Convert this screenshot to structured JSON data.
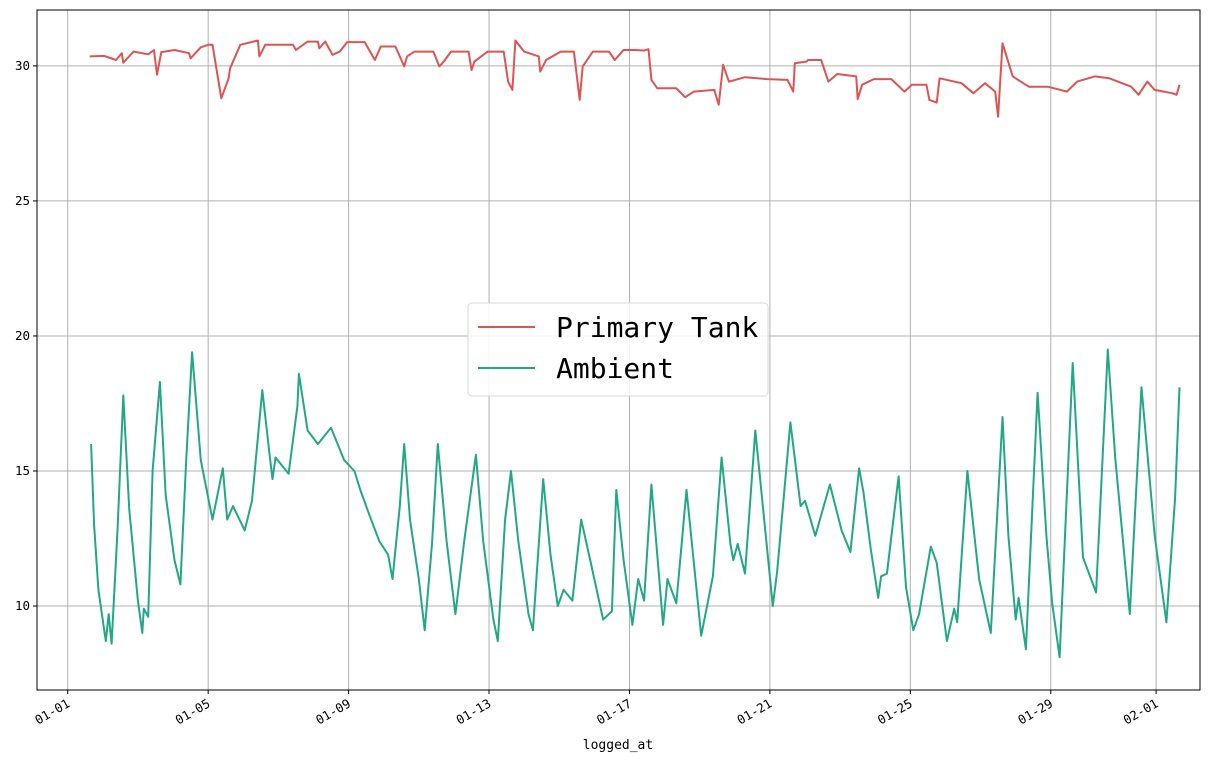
{
  "chart_data": {
    "type": "line",
    "title": "",
    "xlabel": "logged_at",
    "ylabel": "",
    "xlim": [
      "12-31 03:00",
      "02-02 06:00"
    ],
    "ylim": [
      6.89,
      32.07
    ],
    "grid": true,
    "legend_position": "center",
    "x_ticks": [
      "01-01",
      "01-05",
      "01-09",
      "01-13",
      "01-17",
      "01-21",
      "01-25",
      "01-29",
      "02-01"
    ],
    "y_ticks": [
      10,
      15,
      20,
      25,
      30
    ],
    "series": [
      {
        "name": "Primary Tank",
        "color": "#dd5452",
        "points": [
          [
            "01-01 15:00",
            30.35
          ],
          [
            "01-02 01:00",
            30.37
          ],
          [
            "01-02 09:00",
            30.22
          ],
          [
            "01-02 13:00",
            30.47
          ],
          [
            "01-02 14:00",
            30.12
          ],
          [
            "01-02 21:00",
            30.53
          ],
          [
            "01-03 07:00",
            30.43
          ],
          [
            "01-03 11:00",
            30.59
          ],
          [
            "01-03 13:00",
            29.67
          ],
          [
            "01-03 16:00",
            30.51
          ],
          [
            "01-04 01:00",
            30.59
          ],
          [
            "01-04 11:00",
            30.47
          ],
          [
            "01-04 12:00",
            30.28
          ],
          [
            "01-04 19:00",
            30.69
          ],
          [
            "01-05 00:00",
            30.78
          ],
          [
            "01-05 03:00",
            30.78
          ],
          [
            "01-05 09:00",
            28.8
          ],
          [
            "01-05 14:00",
            29.54
          ],
          [
            "01-05 15:00",
            29.91
          ],
          [
            "01-05 22:00",
            30.78
          ],
          [
            "01-06 10:00",
            30.94
          ],
          [
            "01-06 11:00",
            30.35
          ],
          [
            "01-06 15:00",
            30.78
          ],
          [
            "01-07 10:00",
            30.78
          ],
          [
            "01-07 12:00",
            30.59
          ],
          [
            "01-07 20:00",
            30.9
          ],
          [
            "01-08 03:00",
            30.9
          ],
          [
            "01-08 04:00",
            30.65
          ],
          [
            "01-08 08:00",
            30.9
          ],
          [
            "01-08 13:00",
            30.41
          ],
          [
            "01-08 18:00",
            30.53
          ],
          [
            "01-08 23:00",
            30.88
          ],
          [
            "01-09 11:00",
            30.88
          ],
          [
            "01-09 18:00",
            30.22
          ],
          [
            "01-09 22:00",
            30.72
          ],
          [
            "01-10 08:00",
            30.72
          ],
          [
            "01-10 14:00",
            29.98
          ],
          [
            "01-10 16:00",
            30.35
          ],
          [
            "01-10 21:00",
            30.53
          ],
          [
            "01-11 10:00",
            30.53
          ],
          [
            "01-11 14:00",
            29.98
          ],
          [
            "01-11 17:00",
            30.16
          ],
          [
            "01-11 22:00",
            30.53
          ],
          [
            "01-12 10:00",
            30.53
          ],
          [
            "01-12 12:00",
            29.85
          ],
          [
            "01-12 14:00",
            30.16
          ],
          [
            "01-12 23:00",
            30.53
          ],
          [
            "01-13 10:00",
            30.53
          ],
          [
            "01-13 13:00",
            29.42
          ],
          [
            "01-13 16:00",
            29.11
          ],
          [
            "01-13 18:00",
            30.94
          ],
          [
            "01-14 00:00",
            30.53
          ],
          [
            "01-14 10:00",
            30.35
          ],
          [
            "01-14 11:00",
            29.79
          ],
          [
            "01-14 15:00",
            30.22
          ],
          [
            "01-15 01:00",
            30.53
          ],
          [
            "01-15 10:00",
            30.53
          ],
          [
            "01-15 14:00",
            28.74
          ],
          [
            "01-15 16:00",
            29.98
          ],
          [
            "01-15 23:00",
            30.53
          ],
          [
            "01-16 10:00",
            30.53
          ],
          [
            "01-16 14:00",
            30.22
          ],
          [
            "01-16 20:00",
            30.59
          ],
          [
            "01-17 03:00",
            30.59
          ],
          [
            "01-17 10:00",
            30.57
          ],
          [
            "01-17 13:00",
            30.62
          ],
          [
            "01-17 15:00",
            29.48
          ],
          [
            "01-17 19:00",
            29.17
          ],
          [
            "01-18 08:00",
            29.17
          ],
          [
            "01-18 14:00",
            28.84
          ],
          [
            "01-18 20:00",
            29.05
          ],
          [
            "01-19 10:00",
            29.11
          ],
          [
            "01-19 13:00",
            28.56
          ],
          [
            "01-19 16:00",
            30.04
          ],
          [
            "01-19 20:00",
            29.42
          ],
          [
            "01-20 07:00",
            29.58
          ],
          [
            "01-20 22:00",
            29.51
          ],
          [
            "01-21 12:00",
            29.48
          ],
          [
            "01-21 16:00",
            29.05
          ],
          [
            "01-21 17:00",
            30.1
          ],
          [
            "01-22 01:00",
            30.16
          ],
          [
            "01-22 02:00",
            30.22
          ],
          [
            "01-22 11:00",
            30.22
          ],
          [
            "01-22 16:00",
            29.42
          ],
          [
            "01-22 22:00",
            29.7
          ],
          [
            "01-23 11:00",
            29.61
          ],
          [
            "01-23 12:00",
            28.77
          ],
          [
            "01-23 15:00",
            29.3
          ],
          [
            "01-23 23:00",
            29.51
          ],
          [
            "01-24 11:00",
            29.51
          ],
          [
            "01-24 20:00",
            29.05
          ],
          [
            "01-25 01:00",
            29.3
          ],
          [
            "01-25 11:00",
            29.3
          ],
          [
            "01-25 13:00",
            28.74
          ],
          [
            "01-25 18:00",
            28.64
          ],
          [
            "01-25 20:00",
            29.54
          ],
          [
            "01-26 11:00",
            29.36
          ],
          [
            "01-26 19:00",
            28.99
          ],
          [
            "01-27 03:00",
            29.36
          ],
          [
            "01-27 10:00",
            29.05
          ],
          [
            "01-27 12:00",
            28.12
          ],
          [
            "01-27 15:00",
            30.84
          ],
          [
            "01-27 22:00",
            29.61
          ],
          [
            "01-28 09:00",
            29.23
          ],
          [
            "01-28 22:00",
            29.23
          ],
          [
            "01-29 11:00",
            29.05
          ],
          [
            "01-29 18:00",
            29.42
          ],
          [
            "01-30 06:00",
            29.61
          ],
          [
            "01-30 16:00",
            29.54
          ],
          [
            "01-31 07:00",
            29.23
          ],
          [
            "01-31 12:00",
            28.93
          ],
          [
            "01-31 18:00",
            29.42
          ],
          [
            "01-31 23:00",
            29.11
          ],
          [
            "02-01 11:00",
            28.99
          ],
          [
            "02-01 14:00",
            28.93
          ],
          [
            "02-01 16:00",
            29.3
          ]
        ]
      },
      {
        "name": "Ambient",
        "color": "#22a884",
        "points": [
          [
            "01-01 16:00",
            16.0
          ],
          [
            "01-01 18:00",
            13.0
          ],
          [
            "01-01 21:00",
            10.6
          ],
          [
            "01-02 02:00",
            8.7
          ],
          [
            "01-02 04:00",
            9.7
          ],
          [
            "01-02 06:00",
            8.6
          ],
          [
            "01-02 10:00",
            12.8
          ],
          [
            "01-02 14:00",
            17.8
          ],
          [
            "01-02 18:00",
            13.6
          ],
          [
            "01-03 00:00",
            10.2
          ],
          [
            "01-03 03:00",
            9.0
          ],
          [
            "01-03 04:00",
            9.9
          ],
          [
            "01-03 07:00",
            9.6
          ],
          [
            "01-03 10:00",
            15.0
          ],
          [
            "01-03 15:00",
            18.3
          ],
          [
            "01-03 19:00",
            14.1
          ],
          [
            "01-04 01:00",
            11.7
          ],
          [
            "01-04 05:00",
            10.8
          ],
          [
            "01-04 09:00",
            15.4
          ],
          [
            "01-04 13:00",
            19.4
          ],
          [
            "01-04 19:00",
            15.4
          ],
          [
            "01-05 03:00",
            13.2
          ],
          [
            "01-05 10:00",
            15.1
          ],
          [
            "01-05 13:00",
            13.2
          ],
          [
            "01-05 17:00",
            13.7
          ],
          [
            "01-06 01:00",
            12.8
          ],
          [
            "01-06 06:00",
            13.9
          ],
          [
            "01-06 13:00",
            18.0
          ],
          [
            "01-06 18:00",
            15.6
          ],
          [
            "01-06 20:00",
            14.7
          ],
          [
            "01-06 22:00",
            15.5
          ],
          [
            "01-07 07:00",
            14.9
          ],
          [
            "01-07 13:00",
            17.4
          ],
          [
            "01-07 14:00",
            18.6
          ],
          [
            "01-07 20:00",
            16.5
          ],
          [
            "01-08 03:00",
            16.0
          ],
          [
            "01-08 12:00",
            16.6
          ],
          [
            "01-08 21:00",
            15.4
          ],
          [
            "01-09 04:00",
            15.0
          ],
          [
            "01-09 08:00",
            14.3
          ],
          [
            "01-09 14:00",
            13.4
          ],
          [
            "01-09 21:00",
            12.4
          ],
          [
            "01-10 03:00",
            11.9
          ],
          [
            "01-10 06:00",
            11.0
          ],
          [
            "01-10 11:00",
            13.7
          ],
          [
            "01-10 14:00",
            16.0
          ],
          [
            "01-10 18:00",
            13.2
          ],
          [
            "01-11 00:00",
            11.0
          ],
          [
            "01-11 04:00",
            9.1
          ],
          [
            "01-11 09:00",
            12.3
          ],
          [
            "01-11 13:00",
            16.0
          ],
          [
            "01-11 19:00",
            12.4
          ],
          [
            "01-12 01:00",
            9.7
          ],
          [
            "01-12 07:00",
            12.4
          ],
          [
            "01-12 15:00",
            15.6
          ],
          [
            "01-12 20:00",
            12.4
          ],
          [
            "01-13 03:00",
            9.5
          ],
          [
            "01-13 06:00",
            8.7
          ],
          [
            "01-13 11:00",
            13.2
          ],
          [
            "01-13 15:00",
            15.0
          ],
          [
            "01-13 20:00",
            12.4
          ],
          [
            "01-14 03:00",
            9.7
          ],
          [
            "01-14 06:00",
            9.1
          ],
          [
            "01-14 13:00",
            14.7
          ],
          [
            "01-14 18:00",
            11.9
          ],
          [
            "01-14 23:00",
            10.0
          ],
          [
            "01-15 03:00",
            10.6
          ],
          [
            "01-15 09:00",
            10.2
          ],
          [
            "01-15 15:00",
            13.2
          ],
          [
            "01-15 22:00",
            11.5
          ],
          [
            "01-16 06:00",
            9.5
          ],
          [
            "01-16 12:00",
            9.8
          ],
          [
            "01-16 15:00",
            14.3
          ],
          [
            "01-16 20:00",
            11.7
          ],
          [
            "01-17 02:00",
            9.3
          ],
          [
            "01-17 06:00",
            11.0
          ],
          [
            "01-17 10:00",
            10.2
          ],
          [
            "01-17 15:00",
            14.5
          ],
          [
            "01-17 23:00",
            9.3
          ],
          [
            "01-18 02:00",
            11.0
          ],
          [
            "01-18 08:00",
            10.1
          ],
          [
            "01-18 15:00",
            14.3
          ],
          [
            "01-19 01:00",
            8.9
          ],
          [
            "01-19 09:00",
            11.1
          ],
          [
            "01-19 15:00",
            15.5
          ],
          [
            "01-19 21:00",
            12.3
          ],
          [
            "01-19 23:00",
            11.7
          ],
          [
            "01-20 02:00",
            12.3
          ],
          [
            "01-20 07:00",
            11.2
          ],
          [
            "01-20 14:00",
            16.5
          ],
          [
            "01-21 02:00",
            10.0
          ],
          [
            "01-21 05:00",
            11.3
          ],
          [
            "01-21 14:00",
            16.8
          ],
          [
            "01-21 21:00",
            13.7
          ],
          [
            "01-22 00:00",
            13.9
          ],
          [
            "01-22 07:00",
            12.6
          ],
          [
            "01-22 17:00",
            14.5
          ],
          [
            "01-23 01:00",
            12.8
          ],
          [
            "01-23 07:00",
            12.0
          ],
          [
            "01-23 13:00",
            15.1
          ],
          [
            "01-23 16:00",
            14.2
          ],
          [
            "01-23 21:00",
            12.1
          ],
          [
            "01-24 02:00",
            10.3
          ],
          [
            "01-24 04:00",
            11.1
          ],
          [
            "01-24 08:00",
            11.2
          ],
          [
            "01-24 16:00",
            14.8
          ],
          [
            "01-24 21:00",
            10.7
          ],
          [
            "01-25 02:00",
            9.1
          ],
          [
            "01-25 06:00",
            9.7
          ],
          [
            "01-25 14:00",
            12.2
          ],
          [
            "01-25 18:00",
            11.6
          ],
          [
            "01-26 01:00",
            8.7
          ],
          [
            "01-26 06:00",
            9.9
          ],
          [
            "01-26 08:00",
            9.4
          ],
          [
            "01-26 15:00",
            15.0
          ],
          [
            "01-26 23:00",
            11.0
          ],
          [
            "01-27 07:00",
            9.0
          ],
          [
            "01-27 15:00",
            17.0
          ],
          [
            "01-27 19:00",
            12.6
          ],
          [
            "01-28 00:00",
            9.5
          ],
          [
            "01-28 02:00",
            10.3
          ],
          [
            "01-28 07:00",
            8.4
          ],
          [
            "01-28 15:00",
            17.9
          ],
          [
            "01-28 21:00",
            12.6
          ],
          [
            "01-29 01:00",
            10.1
          ],
          [
            "01-29 06:00",
            8.1
          ],
          [
            "01-29 15:00",
            19.0
          ],
          [
            "01-29 22:00",
            11.8
          ],
          [
            "01-30 07:00",
            10.5
          ],
          [
            "01-30 15:00",
            19.5
          ],
          [
            "01-30 20:00",
            15.5
          ],
          [
            "01-31 06:00",
            9.7
          ],
          [
            "01-31 14:00",
            18.1
          ],
          [
            "01-31 23:00",
            12.6
          ],
          [
            "02-01 07:00",
            9.4
          ],
          [
            "02-01 13:00",
            14.0
          ],
          [
            "02-01 16:00",
            18.1
          ]
        ]
      }
    ]
  }
}
